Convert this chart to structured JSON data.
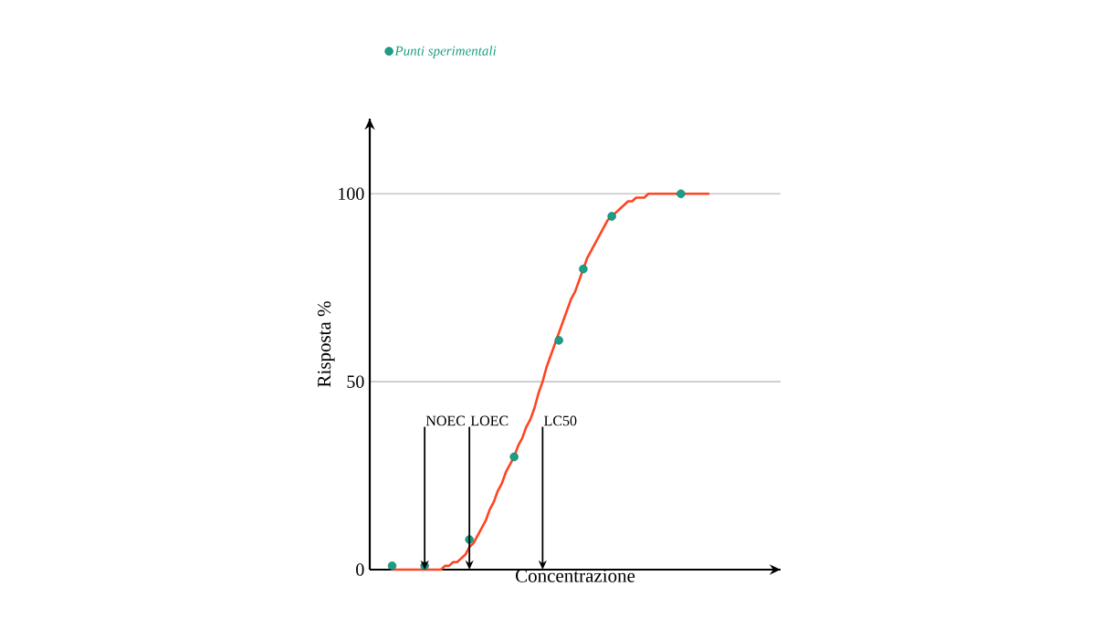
{
  "chart_data": {
    "type": "scatter",
    "xlabel": "Concentrazione",
    "ylabel": "Risposta %",
    "ylim": [
      0,
      120
    ],
    "yticks": [
      0,
      50,
      100
    ],
    "tick_labels": "y",
    "grid": "y",
    "legend": "top left",
    "categories": [
      null,
      null,
      null,
      null,
      null,
      null,
      null,
      null,
      null,
      null,
      null,
      null,
      null,
      null,
      null,
      null,
      null,
      null,
      null,
      null,
      null,
      null,
      null,
      null,
      null,
      null,
      null,
      null,
      null,
      null,
      null,
      null,
      null,
      null,
      null,
      null,
      null,
      null,
      null,
      null,
      null,
      null,
      null,
      null,
      null,
      null,
      null,
      null,
      null,
      null,
      null,
      null,
      null,
      null,
      null,
      null,
      null,
      null,
      null,
      null,
      null,
      null,
      null,
      null,
      null,
      null,
      null,
      null,
      null,
      null,
      null,
      null,
      null,
      null,
      null,
      null,
      null,
      null,
      null,
      null,
      null,
      null,
      null,
      null,
      null,
      null,
      null,
      null,
      null,
      null,
      null,
      null,
      null,
      null,
      null,
      null,
      null,
      null,
      null,
      null,
      null
    ],
    "series": [
      {
        "name": "Punti sperimentali",
        "color": "#1a9e86",
        "marker": "circle",
        "values": [
          null,
          null,
          null,
          null,
          null,
          1,
          null,
          null,
          null,
          null,
          null,
          null,
          null,
          1,
          null,
          null,
          null,
          null,
          null,
          null,
          null,
          null,
          null,
          null,
          8,
          null,
          null,
          null,
          null,
          null,
          null,
          null,
          null,
          null,
          null,
          30,
          null,
          null,
          null,
          null,
          null,
          null,
          null,
          null,
          null,
          null,
          61,
          null,
          null,
          null,
          null,
          null,
          80,
          null,
          null,
          null,
          null,
          null,
          null,
          94,
          null,
          null,
          null,
          null,
          null,
          null,
          null,
          null,
          null,
          null,
          null,
          null,
          null,
          null,
          null,
          null,
          100,
          null,
          null,
          null,
          null,
          null,
          null,
          null,
          null,
          null,
          null,
          null,
          null,
          null,
          null,
          null,
          null,
          null,
          null,
          null,
          null,
          null,
          null,
          null,
          null
        ]
      },
      {
        "type": "line",
        "color": "#ff4422",
        "line_style": "solid",
        "marker": "none",
        "values": [
          null,
          null,
          null,
          null,
          null,
          0,
          0,
          0,
          0,
          0,
          0,
          0,
          0,
          0,
          0,
          0,
          0,
          0,
          1,
          1,
          2,
          2,
          3,
          4,
          6,
          7,
          9,
          11,
          13,
          16,
          18,
          21,
          23,
          26,
          28,
          30,
          33,
          35,
          38,
          40,
          43,
          47,
          50,
          54,
          57,
          60,
          63,
          66,
          69,
          72,
          74,
          77,
          80,
          83,
          85,
          87,
          89,
          91,
          93,
          94,
          95,
          96,
          97,
          98,
          98,
          99,
          99,
          99,
          100,
          100,
          100,
          100,
          100,
          100,
          100,
          100,
          100,
          100,
          100,
          100,
          100,
          100,
          100,
          100,
          null,
          null,
          null,
          null,
          null,
          null,
          null,
          null,
          null,
          null,
          null,
          null,
          null,
          null,
          null,
          null,
          null
        ]
      }
    ],
    "annotations": [
      "NOEC",
      "LOEC",
      "LC50"
    ]
  }
}
